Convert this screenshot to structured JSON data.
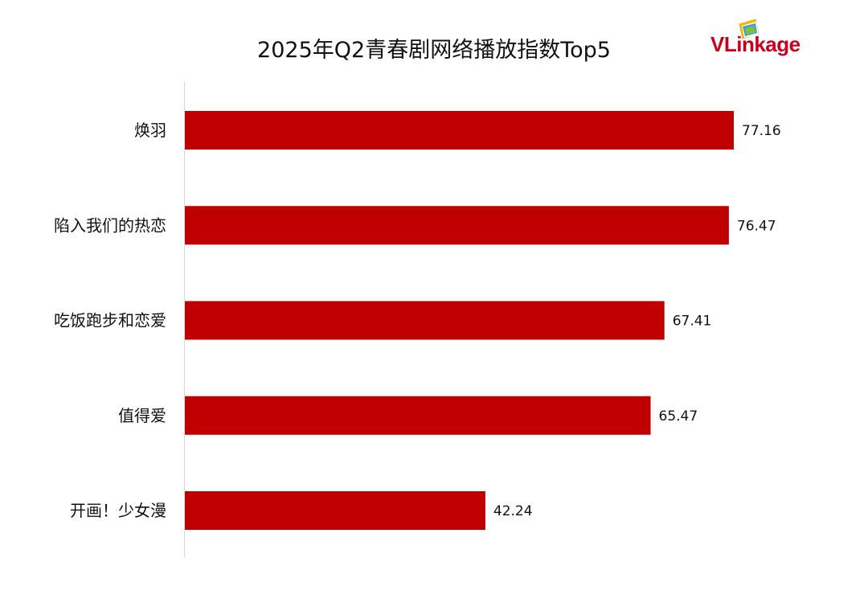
{
  "chart_data": {
    "type": "bar",
    "orientation": "horizontal",
    "title": "2025年Q2青春剧网络播放指数Top5",
    "categories": [
      "焕羽",
      "陷入我们的热恋",
      "吃饭跑步和恋爱",
      "值得爱",
      "开画！少女漫"
    ],
    "values": [
      77.16,
      76.47,
      67.41,
      65.47,
      42.24
    ],
    "value_labels": [
      "77.16",
      "76.47",
      "67.41",
      "65.47",
      "42.24"
    ],
    "xlim": [
      0,
      80
    ],
    "bar_color": "#c00000",
    "grid": false,
    "legend": "none"
  },
  "logo": {
    "text": "VLinkage",
    "color": "#c8001e"
  }
}
